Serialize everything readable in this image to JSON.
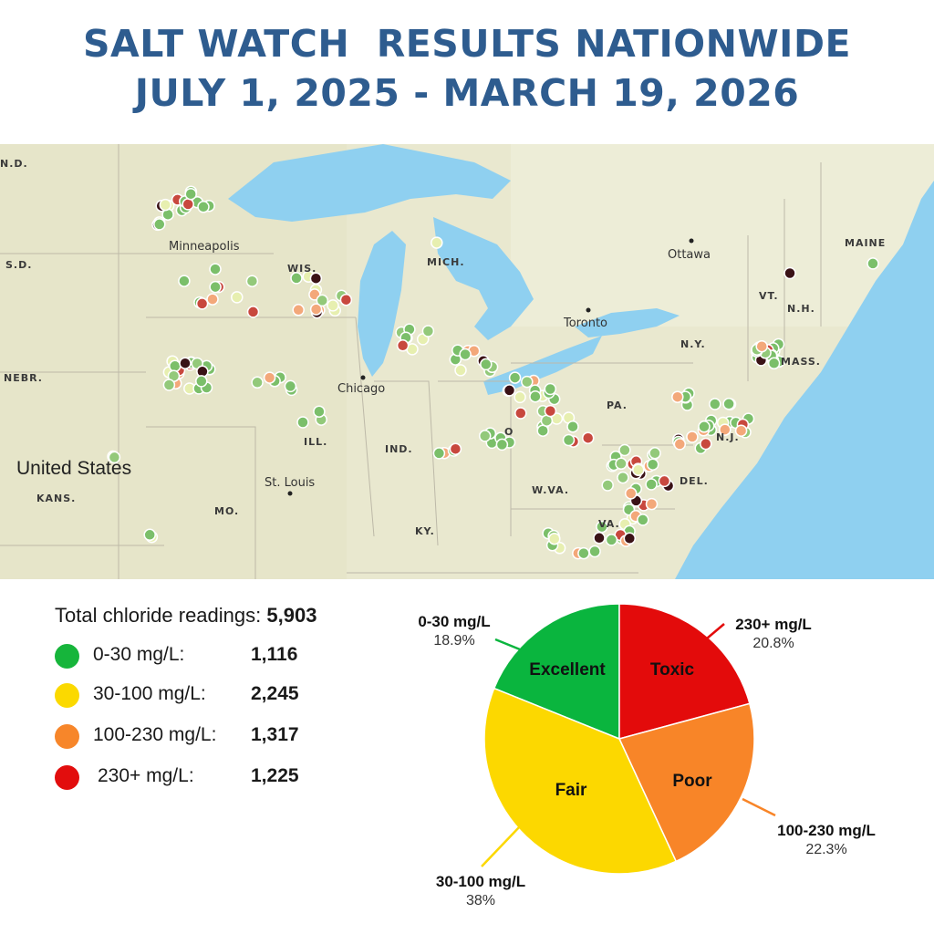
{
  "title": {
    "line1": "SALT WATCH  RESULTS NATIONWIDE",
    "line2": "JULY 1, 2025 - MARCH 19, 2026"
  },
  "map": {
    "labels": {
      "nd": "N.D.",
      "sd": "S.D.",
      "nebr": "NEBR.",
      "kans": "KANS.",
      "mo": "MO.",
      "wis": "WIS.",
      "mich": "MICH.",
      "ill": "ILL.",
      "ind": "IND.",
      "o": "O",
      "ky": "KY.",
      "wva": "W.VA.",
      "va": "VA.",
      "pa": "PA.",
      "ny": "N.Y.",
      "vt": "VT.",
      "nh": "N.H.",
      "mass": "MASS.",
      "maine": "MAINE",
      "del": "DEL.",
      "nj": "N.J."
    },
    "cities": {
      "minneapolis": "Minneapolis",
      "chicago": "Chicago",
      "st_louis": "St. Louis",
      "toronto": "Toronto",
      "ottawa": "Ottawa"
    },
    "country": "United States"
  },
  "summary": {
    "label": "Total chloride readings:",
    "total": "5,903"
  },
  "legend": [
    {
      "label": "0-30 mg/L:",
      "count": "1,116",
      "color": "#16b53b"
    },
    {
      "label": "30-100 mg/L:",
      "count": "2,245",
      "color": "#fbd900"
    },
    {
      "label": "100-230 mg/L:",
      "count": "1,317",
      "color": "#f7862a"
    },
    {
      "label": "230+ mg/L:",
      "count": "1,225",
      "color": "#e20d0d"
    }
  ],
  "chart_data": {
    "type": "pie",
    "slices": [
      {
        "name": "Excellent",
        "category": "0-30 mg/L",
        "percent_label": "18.9%",
        "value": 18.9,
        "color": "#0ab53e"
      },
      {
        "name": "Toxic",
        "category": "230+ mg/L",
        "percent_label": "20.8%",
        "value": 20.8,
        "color": "#e30b0b"
      },
      {
        "name": "Poor",
        "category": "100-230 mg/L",
        "percent_label": "22.3%",
        "value": 22.3,
        "color": "#f88528"
      },
      {
        "name": "Fair",
        "category": "30-100 mg/L",
        "percent_label": "38%",
        "value": 38.0,
        "color": "#fcd800"
      }
    ]
  }
}
